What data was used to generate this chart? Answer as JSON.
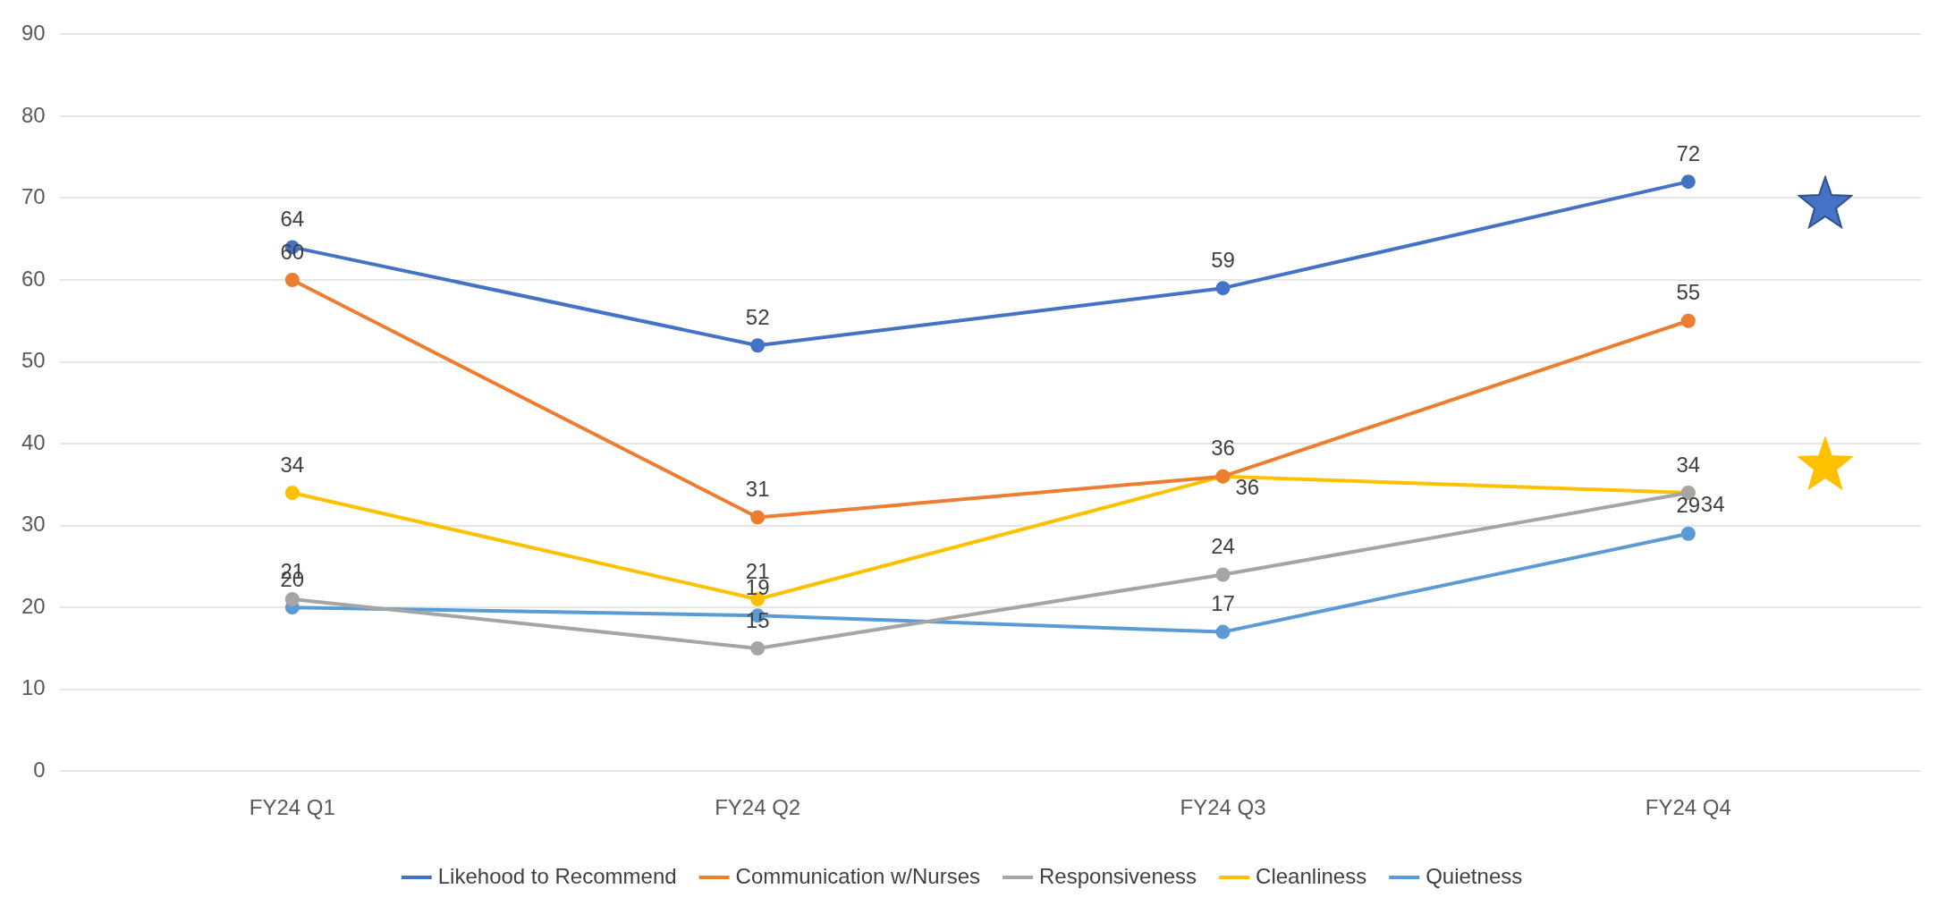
{
  "chart_data": {
    "type": "line",
    "categories": [
      "FY24 Q1",
      "FY24 Q2",
      "FY24 Q3",
      "FY24 Q4"
    ],
    "series": [
      {
        "name": "Likehood to Recommend",
        "color": "#4472c4",
        "values": [
          64,
          52,
          59,
          72
        ]
      },
      {
        "name": "Communication w/Nurses",
        "color": "#ed7d31",
        "values": [
          60,
          31,
          36,
          55
        ]
      },
      {
        "name": "Responsiveness",
        "color": "#a5a5a5",
        "values": [
          21,
          15,
          24,
          34
        ]
      },
      {
        "name": "Cleanliness",
        "color": "#ffc000",
        "values": [
          34,
          21,
          36,
          34
        ]
      },
      {
        "name": "Quietness",
        "color": "#5b9bd5",
        "values": [
          20,
          19,
          17,
          29
        ]
      }
    ],
    "ylim": [
      0,
      90
    ],
    "yticks": [
      0,
      10,
      20,
      30,
      40,
      50,
      60,
      70,
      80,
      90
    ],
    "grid": "y",
    "legend": "bottom",
    "marker": "circle",
    "line_style": "solid",
    "data_labels": true
  }
}
